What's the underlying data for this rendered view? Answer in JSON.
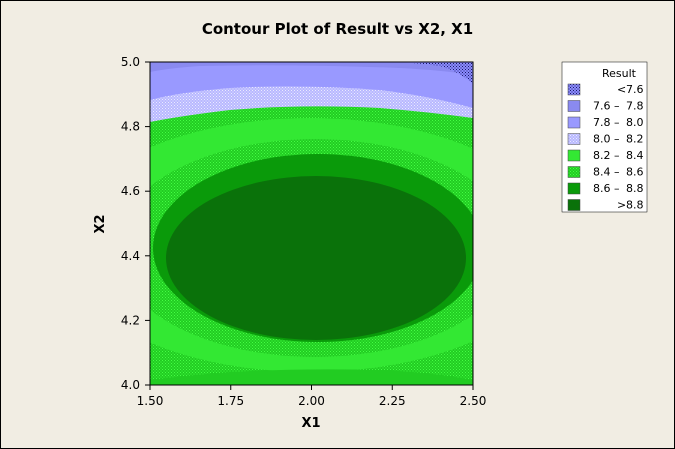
{
  "chart_data": {
    "type": "contour",
    "title": "Contour Plot of Result vs X2, X1",
    "xlabel": "X1",
    "ylabel": "X2",
    "xlim": [
      1.5,
      2.5
    ],
    "ylim": [
      4.0,
      5.0
    ],
    "x_ticks": [
      "1.50",
      "1.75",
      "2.00",
      "2.25",
      "2.50"
    ],
    "y_ticks": [
      "4.0",
      "4.2",
      "4.4",
      "4.6",
      "4.8",
      "5.0"
    ],
    "x_tick_values": [
      1.5,
      1.75,
      2.0,
      2.25,
      2.5
    ],
    "y_tick_values": [
      4.0,
      4.2,
      4.4,
      4.6,
      4.8,
      5.0
    ],
    "legend": {
      "title": "Result",
      "position": "right",
      "items": [
        {
          "label_low": "<",
          "label_high": "7.6",
          "color": "#2d2d9a",
          "hatched": true
        },
        {
          "label_low": "7.6",
          "label_high": "7.8",
          "color": "#8a8af0",
          "hatched": false
        },
        {
          "label_low": "7.8",
          "label_high": "8.0",
          "color": "#9999ff",
          "hatched": false
        },
        {
          "label_low": "8.0",
          "label_high": "8.2",
          "color": "#b8b8ff",
          "hatched": true
        },
        {
          "label_low": "8.2",
          "label_high": "8.4",
          "color": "#33e833",
          "hatched": false
        },
        {
          "label_low": "8.4",
          "label_high": "8.6",
          "color": "#22cc22",
          "hatched": true
        },
        {
          "label_low": "8.6",
          "label_high": "8.8",
          "color": "#0a9a0a",
          "hatched": false
        },
        {
          "label_low": ">",
          "label_high": "8.8",
          "color": "#0a720a",
          "hatched": false
        }
      ]
    },
    "contours": [
      {
        "level": "> 8.8",
        "center": [
          1.94,
          4.38
        ],
        "rx": 0.46,
        "ry": 0.27
      },
      {
        "level": "8.6 - 8.8",
        "center": [
          1.97,
          4.38
        ],
        "rx": 0.75,
        "ry": 0.47
      },
      {
        "level": "8.4 - 8.6",
        "center": [
          2.0,
          4.4
        ],
        "rx": 0.9,
        "ry": 0.58
      },
      {
        "level": "8.2 - 8.4",
        "center": [
          2.0,
          4.4
        ],
        "rx": 1.05,
        "ry": 0.7
      }
    ]
  }
}
